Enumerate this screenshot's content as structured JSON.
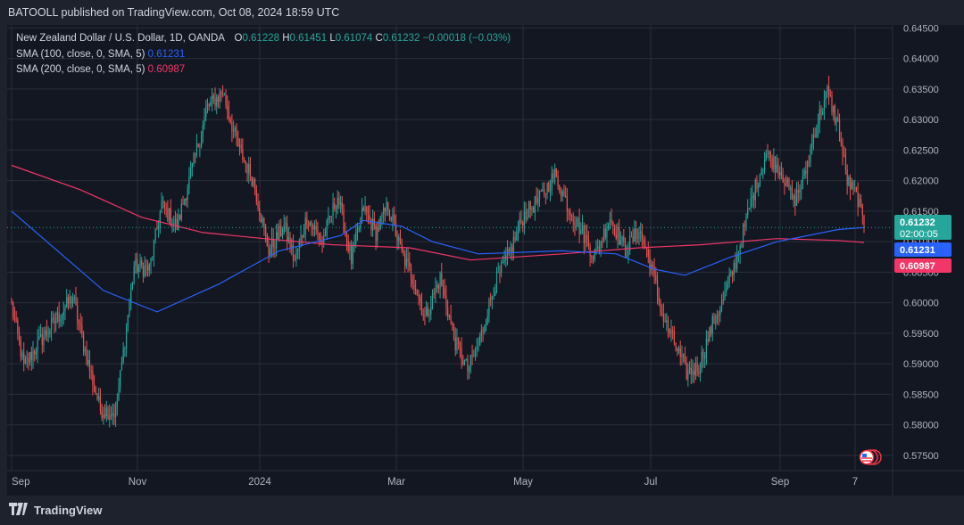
{
  "header": {
    "published": "BATOOLL published on TradingView.com, Oct 08, 2024 18:59 UTC"
  },
  "legend": {
    "symbol": "New Zealand Dollar / U.S. Dollar, 1D, OANDA",
    "open_label": "O",
    "open": "0.61228",
    "high_label": "H",
    "high": "0.61451",
    "low_label": "L",
    "low": "0.61074",
    "close_label": "C",
    "close": "0.61232",
    "change": "−0.00018 (−0.03%)",
    "sma100_label": "SMA (100, close, 0, SMA, 5)",
    "sma100_value": "0.61231",
    "sma200_label": "SMA (200, close, 0, SMA, 5)",
    "sma200_value": "0.60987"
  },
  "footer": {
    "brand": "TradingView"
  },
  "colors": {
    "up": "#26a69a",
    "down": "#ef5350",
    "sma100": "#2962ff",
    "sma200": "#f23668",
    "background": "#131722",
    "grid": "#2a2e39"
  },
  "chart_data": {
    "type": "candlestick",
    "ylim": [
      0.5725,
      0.6455
    ],
    "y_ticks": [
      "0.64500",
      "0.64000",
      "0.63500",
      "0.63000",
      "0.62500",
      "0.62000",
      "0.61500",
      "0.61000",
      "0.60500",
      "0.60000",
      "0.59500",
      "0.59000",
      "0.58500",
      "0.58000",
      "0.57500"
    ],
    "x_labels": [
      "Sep",
      "Nov",
      "2024",
      "Mar",
      "May",
      "Jul",
      "Sep",
      "7"
    ],
    "price_labels": [
      {
        "text": "0.61232",
        "sub": "02:00:05",
        "value": 0.61232,
        "color": "#26a69a"
      },
      {
        "text": "0.61231",
        "value": 0.61231,
        "color": "#2962ff"
      },
      {
        "text": "0.60987",
        "value": 0.60987,
        "color": "#f23668"
      }
    ],
    "close_anchors": [
      [
        0,
        0.5995
      ],
      [
        8,
        0.5895
      ],
      [
        18,
        0.5935
      ],
      [
        30,
        0.5975
      ],
      [
        40,
        0.601
      ],
      [
        48,
        0.592
      ],
      [
        58,
        0.5825
      ],
      [
        68,
        0.582
      ],
      [
        80,
        0.606
      ],
      [
        90,
        0.6055
      ],
      [
        98,
        0.616
      ],
      [
        108,
        0.6125
      ],
      [
        118,
        0.622
      ],
      [
        128,
        0.632
      ],
      [
        138,
        0.6345
      ],
      [
        148,
        0.6255
      ],
      [
        158,
        0.62
      ],
      [
        168,
        0.6085
      ],
      [
        178,
        0.6125
      ],
      [
        185,
        0.607
      ],
      [
        193,
        0.614
      ],
      [
        203,
        0.61
      ],
      [
        213,
        0.6175
      ],
      [
        222,
        0.607
      ],
      [
        230,
        0.6155
      ],
      [
        238,
        0.6115
      ],
      [
        246,
        0.616
      ],
      [
        255,
        0.608
      ],
      [
        263,
        0.6035
      ],
      [
        270,
        0.5975
      ],
      [
        280,
        0.604
      ],
      [
        290,
        0.5935
      ],
      [
        298,
        0.589
      ],
      [
        305,
        0.593
      ],
      [
        315,
        0.6025
      ],
      [
        325,
        0.608
      ],
      [
        335,
        0.6145
      ],
      [
        345,
        0.617
      ],
      [
        355,
        0.621
      ],
      [
        365,
        0.615
      ],
      [
        373,
        0.6115
      ],
      [
        381,
        0.6075
      ],
      [
        391,
        0.614
      ],
      [
        401,
        0.6085
      ],
      [
        410,
        0.612
      ],
      [
        418,
        0.606
      ],
      [
        425,
        0.598
      ],
      [
        433,
        0.5935
      ],
      [
        441,
        0.5885
      ],
      [
        449,
        0.5895
      ],
      [
        458,
        0.5965
      ],
      [
        466,
        0.601
      ],
      [
        474,
        0.6075
      ],
      [
        483,
        0.6165
      ],
      [
        493,
        0.6245
      ],
      [
        503,
        0.6215
      ],
      [
        511,
        0.6165
      ],
      [
        518,
        0.6205
      ],
      [
        525,
        0.6285
      ],
      [
        533,
        0.6345
      ],
      [
        540,
        0.629
      ],
      [
        546,
        0.62
      ],
      [
        553,
        0.617
      ],
      [
        557,
        0.6125
      ]
    ],
    "sma100": [
      [
        0,
        0.615
      ],
      [
        60,
        0.602
      ],
      [
        95,
        0.5985
      ],
      [
        135,
        0.603
      ],
      [
        175,
        0.6085
      ],
      [
        215,
        0.611
      ],
      [
        230,
        0.6135
      ],
      [
        255,
        0.6125
      ],
      [
        275,
        0.61
      ],
      [
        305,
        0.608
      ],
      [
        360,
        0.6085
      ],
      [
        395,
        0.608
      ],
      [
        420,
        0.6055
      ],
      [
        440,
        0.6045
      ],
      [
        470,
        0.6075
      ],
      [
        500,
        0.61
      ],
      [
        540,
        0.612
      ],
      [
        557,
        0.61231
      ]
    ],
    "sma200": [
      [
        0,
        0.6225
      ],
      [
        45,
        0.6185
      ],
      [
        85,
        0.614
      ],
      [
        125,
        0.6115
      ],
      [
        165,
        0.6105
      ],
      [
        210,
        0.6095
      ],
      [
        260,
        0.609
      ],
      [
        300,
        0.607
      ],
      [
        360,
        0.608
      ],
      [
        410,
        0.609
      ],
      [
        450,
        0.6095
      ],
      [
        500,
        0.6105
      ],
      [
        540,
        0.6102
      ],
      [
        557,
        0.60987
      ]
    ],
    "n_bars": 558
  }
}
